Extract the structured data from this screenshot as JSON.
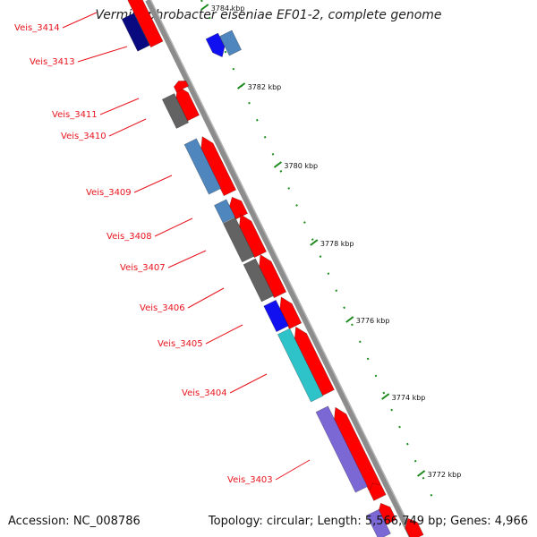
{
  "title": "Verminephrobacter eiseniae EF01-2, complete genome",
  "footer": {
    "accession": "Accession: NC_008786",
    "summary": "Topology: circular; Length: 5,566,749 bp; Genes: 4,966"
  },
  "colors": {
    "label": "#e8141e",
    "forward_gene": "#ff0000",
    "backbone": "#8c8c8c",
    "tick": "#1a8a1a",
    "navy": "#0a0a80",
    "blue": "#1010f0",
    "steel": "#4f86bd",
    "gray": "#636363",
    "cyan": "#2ec3c8",
    "purple": "#7b68d4"
  },
  "scale": {
    "ticks": [
      "3784 kbp",
      "3782 kbp",
      "3780 kbp",
      "3778 kbp",
      "3776 kbp",
      "3774 kbp",
      "3772 kbp"
    ]
  },
  "gene_labels": [
    "Veis_3414",
    "Veis_3413",
    "Veis_3411",
    "Veis_3410",
    "Veis_3409",
    "Veis_3408",
    "Veis_3407",
    "Veis_3406",
    "Veis_3405",
    "Veis_3404",
    "Veis_3403"
  ]
}
